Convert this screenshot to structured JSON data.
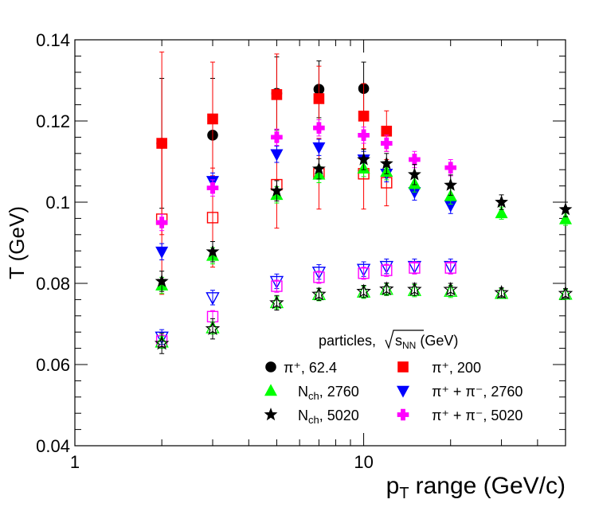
{
  "chart_data": {
    "type": "scatter",
    "title": "",
    "xlabel": "range (GeV/c)",
    "xlabel_symbol": "p",
    "xlabel_sub": "T",
    "ylabel": "T (GeV)",
    "xscale": "log",
    "xlim": [
      1,
      50
    ],
    "ylim": [
      0.04,
      0.14
    ],
    "grid": false,
    "y_ticks": [
      0.04,
      0.06,
      0.08,
      0.1,
      0.12,
      0.14
    ],
    "y_tick_labels": [
      "0.04",
      "0.06",
      "0.08",
      "0.1",
      "0.12",
      "0.14"
    ],
    "x_major_ticks": [
      1,
      10
    ],
    "x_tick_labels": [
      "1",
      "10"
    ],
    "x_minor_ticks": [
      2,
      3,
      4,
      5,
      6,
      7,
      8,
      9,
      20,
      30,
      40
    ],
    "legend": {
      "position": "bottom-right",
      "header_text": "particles, ",
      "header_sqrt": "s",
      "header_sub": "NN",
      "header_unit": " (GeV)",
      "entries": [
        {
          "label": "π⁺, 62.4",
          "marker": "circle",
          "color": "#000000"
        },
        {
          "label": "π⁺, 200",
          "marker": "square",
          "color": "#ff0000"
        },
        {
          "label_main": "N",
          "label_sub": "ch",
          "label_rest": ", 2760",
          "marker": "triangle-up",
          "color": "#00ff00"
        },
        {
          "label": "π⁺ + π⁻, 2760",
          "marker": "triangle-down",
          "color": "#0000ff"
        },
        {
          "label_main": "N",
          "label_sub": "ch",
          "label_rest": ", 5020",
          "marker": "star",
          "color": "#000000"
        },
        {
          "label": "π⁺ + π⁻, 5020",
          "marker": "cross",
          "color": "#ff00ff"
        }
      ]
    },
    "series": [
      {
        "name": "π⁺, 62.4 (filled)",
        "marker": "circle",
        "filled": true,
        "color": "#000000",
        "points": [
          [
            2,
            0.1145,
            0.016
          ],
          [
            3,
            0.1165,
            0.014
          ],
          [
            5,
            0.1268,
            0.009
          ],
          [
            7,
            0.1278,
            0.007
          ],
          [
            10,
            0.128,
            0.0065
          ]
        ]
      },
      {
        "name": "π⁺, 200 (filled)",
        "marker": "square",
        "filled": true,
        "color": "#ff0000",
        "points": [
          [
            2,
            0.1145,
            0.0225
          ],
          [
            3,
            0.1205,
            0.014
          ],
          [
            5,
            0.1265,
            0.01
          ],
          [
            7,
            0.1255,
            0.008
          ],
          [
            10,
            0.1212,
            0.008
          ],
          [
            12,
            0.1175,
            0.005
          ]
        ]
      },
      {
        "name": "π⁺, 200 (open)",
        "marker": "square",
        "filled": false,
        "color": "#ff0000",
        "points": [
          [
            2,
            0.0958,
            0.0185
          ],
          [
            3,
            0.0962,
            0.0122
          ],
          [
            5,
            0.1043,
            0.0107
          ],
          [
            7,
            0.107,
            0.0087
          ],
          [
            10,
            0.107,
            0.0087
          ],
          [
            12,
            0.1048,
            0.0057
          ]
        ]
      },
      {
        "name": "π⁺ + π⁻, 2760 (filled)",
        "marker": "triangle-down",
        "filled": true,
        "color": "#0000ff",
        "points": [
          [
            2,
            0.0878,
            0.002
          ],
          [
            3,
            0.1052,
            0.002
          ],
          [
            5,
            0.1118,
            0.002
          ],
          [
            7,
            0.1135,
            0.002
          ],
          [
            10,
            0.1105,
            0.002
          ],
          [
            12,
            0.107,
            0.002
          ],
          [
            15,
            0.1025,
            0.002
          ],
          [
            20,
            0.0992,
            0.002
          ]
        ]
      },
      {
        "name": "π⁺ + π⁻, 2760 (open)",
        "marker": "triangle-down",
        "filled": false,
        "color": "#0000ff",
        "points": [
          [
            2,
            0.0668,
            0.0018
          ],
          [
            3,
            0.0765,
            0.0018
          ],
          [
            5,
            0.0805,
            0.0018
          ],
          [
            7,
            0.0828,
            0.0018
          ],
          [
            10,
            0.0835,
            0.0018
          ],
          [
            12,
            0.0842,
            0.0018
          ],
          [
            15,
            0.0842,
            0.0018
          ],
          [
            20,
            0.0842,
            0.0018
          ]
        ]
      },
      {
        "name": "π⁺ + π⁻, 5020 (filled)",
        "marker": "cross",
        "filled": true,
        "color": "#ff00ff",
        "points": [
          [
            2,
            0.095,
            0.002
          ],
          [
            3,
            0.1035,
            0.002
          ],
          [
            5,
            0.116,
            0.002
          ],
          [
            7,
            0.1183,
            0.002
          ],
          [
            10,
            0.1165,
            0.002
          ],
          [
            12,
            0.1145,
            0.002
          ],
          [
            15,
            0.1105,
            0.002
          ],
          [
            20,
            0.1085,
            0.002
          ]
        ]
      },
      {
        "name": "π⁺ + π⁻, 5020 (open)",
        "marker": "square",
        "filled": false,
        "color": "#ff00ff",
        "points": [
          [
            2,
            0.0658,
            0.0015
          ],
          [
            3,
            0.0718,
            0.0015
          ],
          [
            5,
            0.0793,
            0.0015
          ],
          [
            7,
            0.0815,
            0.0015
          ],
          [
            10,
            0.0825,
            0.0015
          ],
          [
            12,
            0.0832,
            0.0015
          ],
          [
            15,
            0.0838,
            0.0015
          ],
          [
            20,
            0.0838,
            0.0015
          ]
        ]
      },
      {
        "name": "N_ch, 2760 (filled)",
        "marker": "triangle-up",
        "filled": true,
        "color": "#00ff00",
        "points": [
          [
            2,
            0.0795,
            0.002
          ],
          [
            3,
            0.0868,
            0.002
          ],
          [
            5,
            0.1018,
            0.002
          ],
          [
            7,
            0.1068,
            0.002
          ],
          [
            10,
            0.1083,
            0.002
          ],
          [
            12,
            0.1075,
            0.002
          ],
          [
            15,
            0.1045,
            0.002
          ],
          [
            20,
            0.1015,
            0.002
          ],
          [
            30,
            0.0973,
            0.0015
          ],
          [
            50,
            0.0958,
            0.0015
          ]
        ]
      },
      {
        "name": "N_ch, 2760 (open)",
        "marker": "triangle-up",
        "filled": false,
        "color": "#00ff00",
        "points": [
          [
            2,
            0.0655,
            0.0015
          ],
          [
            3,
            0.069,
            0.0015
          ],
          [
            5,
            0.0752,
            0.0015
          ],
          [
            7,
            0.0772,
            0.0015
          ],
          [
            10,
            0.0778,
            0.0015
          ],
          [
            12,
            0.0785,
            0.0015
          ],
          [
            15,
            0.0782,
            0.0015
          ],
          [
            20,
            0.078,
            0.0015
          ],
          [
            30,
            0.0775,
            0.0012
          ],
          [
            50,
            0.0773,
            0.0012
          ]
        ]
      },
      {
        "name": "N_ch, 5020 (filled)",
        "marker": "star",
        "filled": true,
        "color": "#000000",
        "points": [
          [
            2,
            0.0805,
            0.0025
          ],
          [
            3,
            0.0878,
            0.0025
          ],
          [
            5,
            0.1028,
            0.0025
          ],
          [
            7,
            0.1082,
            0.0025
          ],
          [
            10,
            0.1105,
            0.0025
          ],
          [
            12,
            0.1095,
            0.0025
          ],
          [
            15,
            0.1068,
            0.0025
          ],
          [
            20,
            0.1042,
            0.0025
          ],
          [
            30,
            0.1,
            0.0018
          ],
          [
            50,
            0.0982,
            0.0018
          ]
        ]
      },
      {
        "name": "N_ch, 5020 (open)",
        "marker": "star",
        "filled": false,
        "color": "#000000",
        "points": [
          [
            2,
            0.0652,
            0.0025
          ],
          [
            3,
            0.0688,
            0.0025
          ],
          [
            5,
            0.0752,
            0.0018
          ],
          [
            7,
            0.0773,
            0.0015
          ],
          [
            10,
            0.078,
            0.0015
          ],
          [
            12,
            0.0786,
            0.0015
          ],
          [
            15,
            0.0785,
            0.0015
          ],
          [
            20,
            0.0785,
            0.0015
          ],
          [
            30,
            0.0777,
            0.0012
          ],
          [
            50,
            0.0775,
            0.0012
          ]
        ]
      }
    ]
  }
}
